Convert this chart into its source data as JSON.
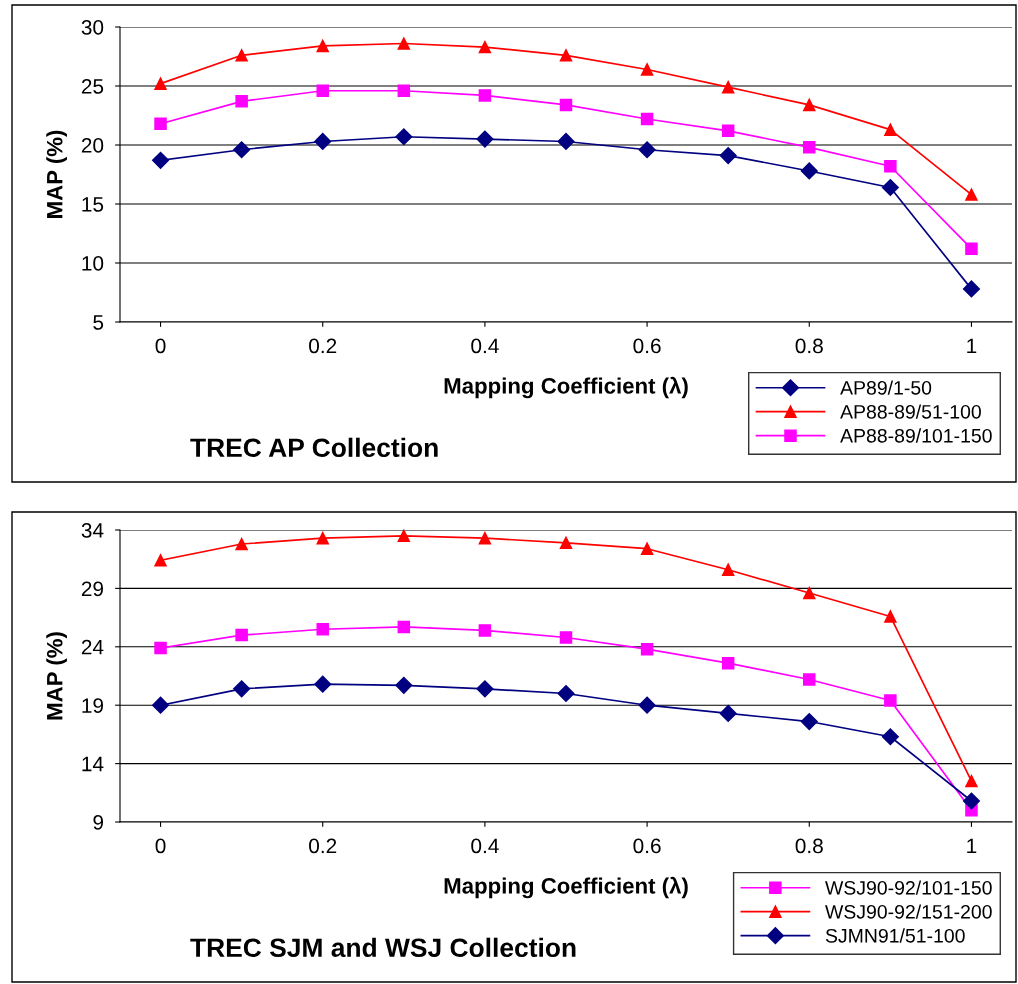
{
  "chart_data": [
    {
      "type": "line",
      "title": "TREC AP Collection",
      "xlabel": "Mapping Coefficient (λ)",
      "ylabel": "MAP (%)",
      "x": [
        0,
        0.1,
        0.2,
        0.3,
        0.4,
        0.5,
        0.6,
        0.7,
        0.8,
        0.9,
        1
      ],
      "xlim": [
        -0.05,
        1.05
      ],
      "xticks": [
        0,
        0.2,
        0.4,
        0.6,
        0.8,
        1
      ],
      "ylim": [
        5,
        30
      ],
      "yticks": [
        5,
        10,
        15,
        20,
        25,
        30
      ],
      "grid": "y",
      "legend": "bottom right",
      "series": [
        {
          "name": "AP89/1-50",
          "color": "#000080",
          "marker": "diamond",
          "values": [
            18.7,
            19.6,
            20.3,
            20.7,
            20.5,
            20.3,
            19.6,
            19.1,
            17.8,
            16.4,
            7.8
          ]
        },
        {
          "name": "AP88-89/51-100",
          "color": "#ff0000",
          "marker": "triangle",
          "values": [
            25.2,
            27.6,
            28.4,
            28.6,
            28.3,
            27.6,
            26.4,
            24.9,
            23.4,
            21.3,
            15.8
          ]
        },
        {
          "name": "AP88-89/101-150",
          "color": "#ff00ff",
          "marker": "square",
          "values": [
            21.8,
            23.7,
            24.6,
            24.6,
            24.2,
            23.4,
            22.2,
            21.2,
            19.8,
            18.2,
            11.2
          ]
        }
      ]
    },
    {
      "type": "line",
      "title": "TREC SJM and WSJ Collection",
      "xlabel": "Mapping Coefficient (λ)",
      "ylabel": "MAP (%)",
      "x": [
        0,
        0.1,
        0.2,
        0.3,
        0.4,
        0.5,
        0.6,
        0.7,
        0.8,
        0.9,
        1
      ],
      "xlim": [
        -0.05,
        1.05
      ],
      "xticks": [
        0,
        0.2,
        0.4,
        0.6,
        0.8,
        1
      ],
      "ylim": [
        9,
        34
      ],
      "yticks": [
        9,
        14,
        19,
        24,
        29,
        34
      ],
      "grid": "y",
      "legend": "bottom right",
      "series": [
        {
          "name": "WSJ90-92/101-150",
          "color": "#ff00ff",
          "marker": "square",
          "values": [
            23.9,
            25.0,
            25.5,
            25.7,
            25.4,
            24.8,
            23.8,
            22.6,
            21.2,
            19.4,
            10.0
          ]
        },
        {
          "name": "WSJ90-92/151-200",
          "color": "#ff0000",
          "marker": "triangle",
          "values": [
            31.4,
            32.8,
            33.3,
            33.5,
            33.3,
            32.9,
            32.4,
            30.6,
            28.6,
            26.6,
            12.5
          ]
        },
        {
          "name": "SJMN91/51-100",
          "color": "#000080",
          "marker": "diamond",
          "values": [
            19.0,
            20.4,
            20.8,
            20.7,
            20.4,
            20.0,
            19.0,
            18.3,
            17.6,
            16.3,
            10.8
          ]
        }
      ]
    }
  ]
}
